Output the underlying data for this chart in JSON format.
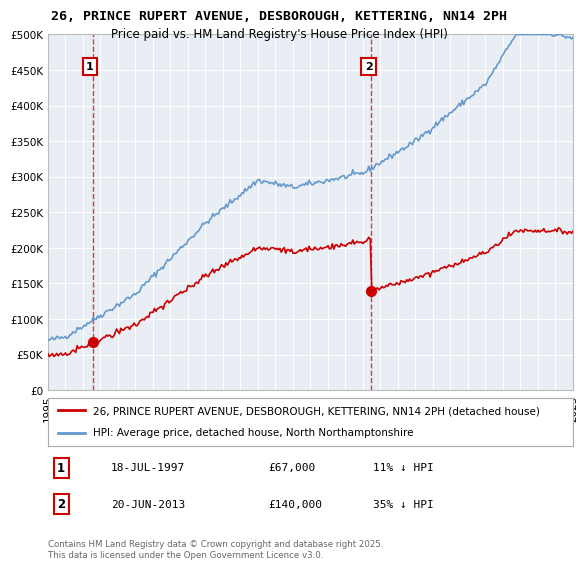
{
  "title1": "26, PRINCE RUPERT AVENUE, DESBOROUGH, KETTERING, NN14 2PH",
  "title2": "Price paid vs. HM Land Registry's House Price Index (HPI)",
  "legend_label1": "26, PRINCE RUPERT AVENUE, DESBOROUGH, KETTERING, NN14 2PH (detached house)",
  "legend_label2": "HPI: Average price, detached house, North Northamptonshire",
  "sale1_label": "1",
  "sale1_date": "18-JUL-1997",
  "sale1_price": "£67,000",
  "sale1_note": "11% ↓ HPI",
  "sale2_label": "2",
  "sale2_date": "20-JUN-2013",
  "sale2_price": "£140,000",
  "sale2_note": "35% ↓ HPI",
  "footer": "Contains HM Land Registry data © Crown copyright and database right 2025.\nThis data is licensed under the Open Government Licence v3.0.",
  "color_price_paid": "#cc0000",
  "color_hpi": "#6699cc",
  "color_dashed": "#cc2222",
  "background_color": "#e8eef4",
  "sale1_year": 1997.55,
  "sale2_year": 2013.47,
  "sale1_price_val": 67000,
  "sale2_price_val": 140000,
  "xmin": 1995,
  "xmax": 2025,
  "ymin": 0,
  "ymax": 500000
}
